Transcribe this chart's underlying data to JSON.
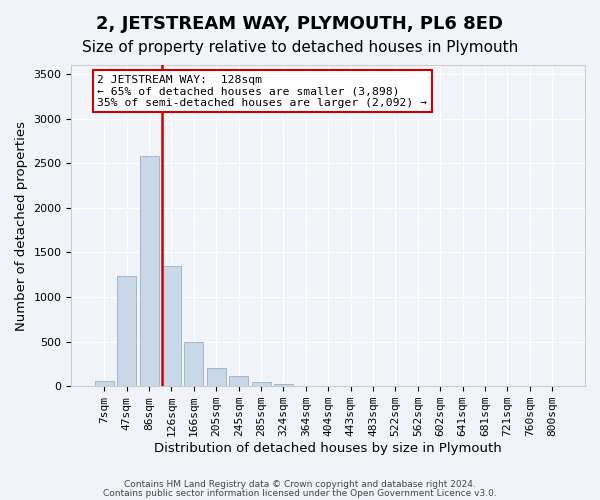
{
  "title": "2, JETSTREAM WAY, PLYMOUTH, PL6 8ED",
  "subtitle": "Size of property relative to detached houses in Plymouth",
  "xlabel": "Distribution of detached houses by size in Plymouth",
  "ylabel": "Number of detached properties",
  "bar_labels": [
    "7sqm",
    "47sqm",
    "86sqm",
    "126sqm",
    "166sqm",
    "205sqm",
    "245sqm",
    "285sqm",
    "324sqm",
    "364sqm",
    "404sqm",
    "443sqm",
    "483sqm",
    "522sqm",
    "562sqm",
    "602sqm",
    "641sqm",
    "681sqm",
    "721sqm",
    "760sqm",
    "800sqm"
  ],
  "bar_values": [
    55,
    1230,
    2580,
    1350,
    500,
    200,
    110,
    45,
    30,
    0,
    0,
    0,
    0,
    0,
    0,
    0,
    0,
    0,
    0,
    0,
    0
  ],
  "bar_color": "#c8d8e8",
  "bar_edge_color": "#a0b8cc",
  "vline_color": "#cc0000",
  "ylim": [
    0,
    3600
  ],
  "yticks": [
    0,
    500,
    1000,
    1500,
    2000,
    2500,
    3000,
    3500
  ],
  "annotation_title": "2 JETSTREAM WAY:  128sqm",
  "annotation_line1": "← 65% of detached houses are smaller (3,898)",
  "annotation_line2": "35% of semi-detached houses are larger (2,092) →",
  "annotation_box_color": "#ffffff",
  "annotation_box_edge": "#cc0000",
  "footer1": "Contains HM Land Registry data © Crown copyright and database right 2024.",
  "footer2": "Contains public sector information licensed under the Open Government Licence v3.0.",
  "bg_color": "#f0f4f8",
  "grid_color": "#ffffff",
  "title_fontsize": 13,
  "subtitle_fontsize": 11,
  "axis_label_fontsize": 9.5,
  "tick_fontsize": 8
}
